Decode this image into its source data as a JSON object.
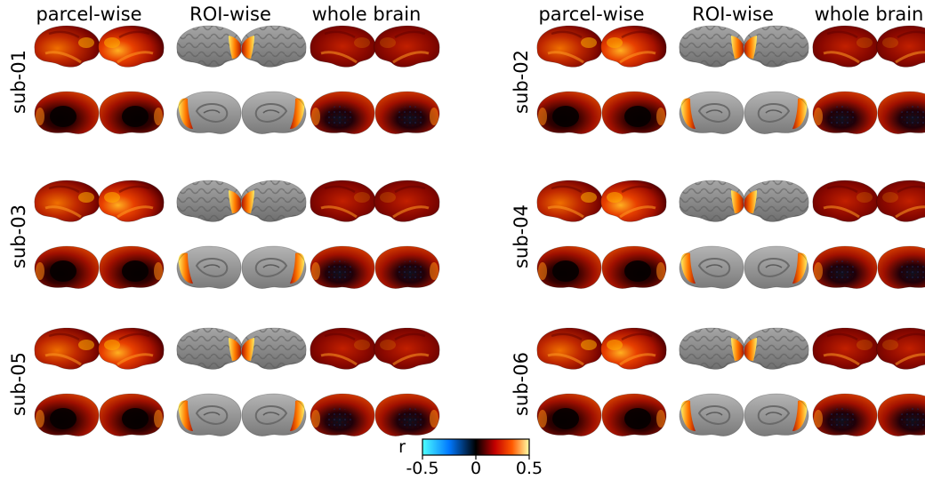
{
  "panels": [
    {
      "columns": [
        "parcel-wise",
        "ROI-wise",
        "whole brain"
      ],
      "subjects": [
        "sub-01",
        "sub-03",
        "sub-05"
      ]
    },
    {
      "columns": [
        "parcel-wise",
        "ROI-wise",
        "whole brain"
      ],
      "subjects": [
        "sub-02",
        "sub-04",
        "sub-06"
      ]
    }
  ],
  "views": [
    "lateral-left",
    "lateral-right",
    "medial-left",
    "medial-right"
  ],
  "colorbar": {
    "label": "r",
    "ticks": [
      "-0.5",
      "0",
      "0.5"
    ],
    "min": -0.5,
    "max": 0.5,
    "colormap": [
      "#4dffff",
      "#0080ff",
      "#000000",
      "#c00000",
      "#ff4000",
      "#ffc000",
      "#ffffa0"
    ]
  },
  "colors": {
    "cortex_gray": "#8c8c8c",
    "map_dark": "#2a0000",
    "map_red": "#9e1000",
    "map_orange": "#f05a00",
    "map_yellow": "#ffd830"
  }
}
